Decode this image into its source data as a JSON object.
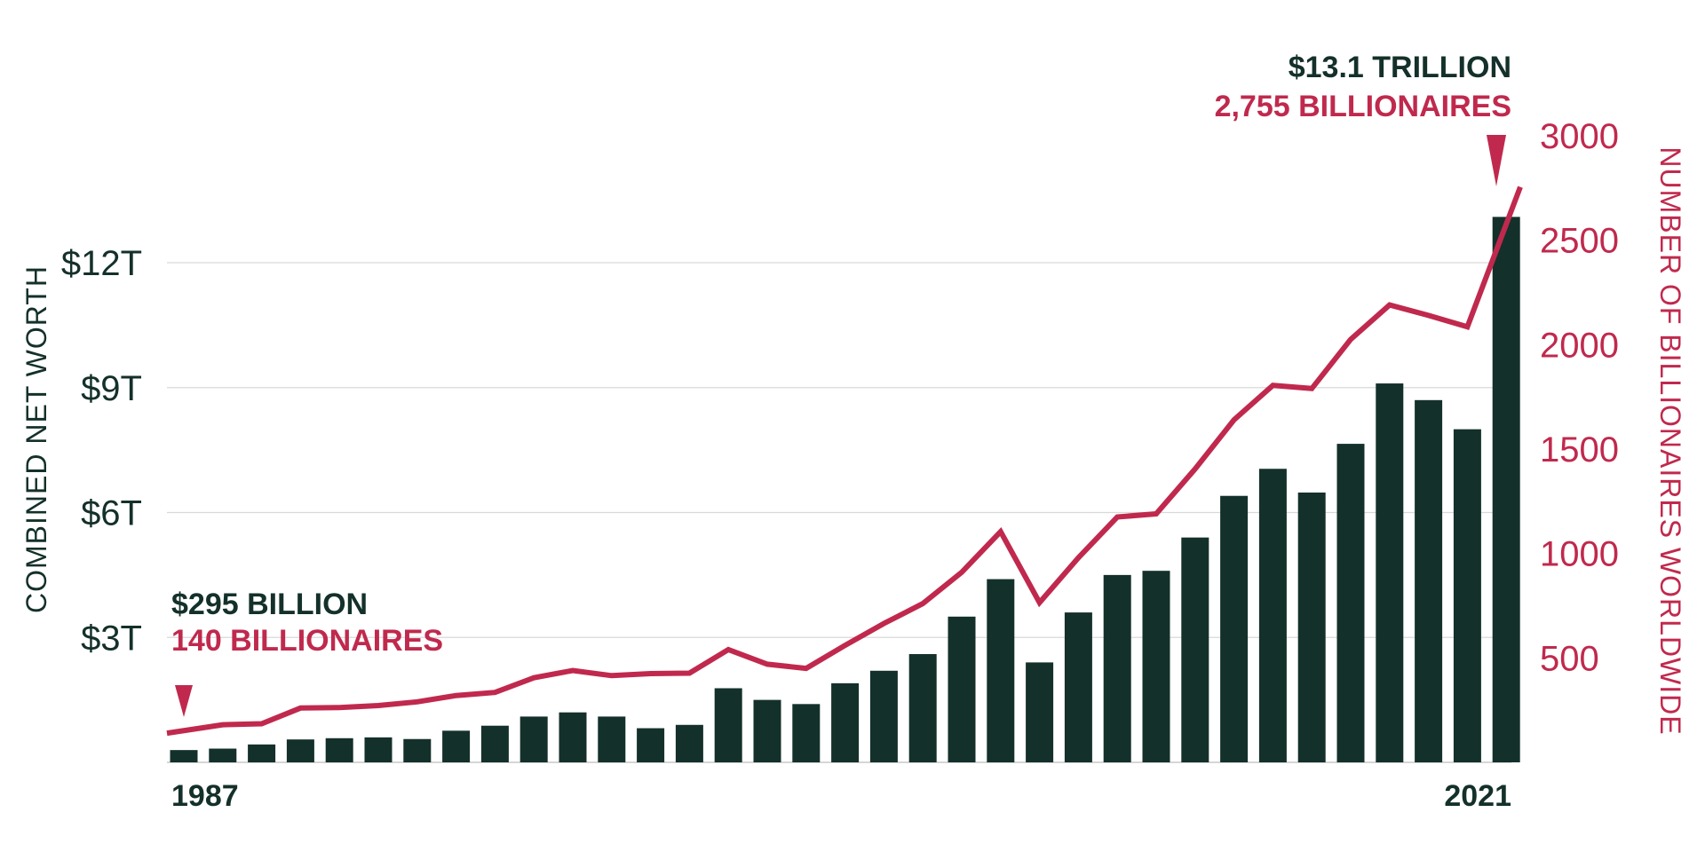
{
  "chart_data": {
    "type": "bar",
    "x": [
      1987,
      1988,
      1989,
      1990,
      1991,
      1992,
      1993,
      1994,
      1995,
      1996,
      1997,
      1998,
      1999,
      2000,
      2001,
      2002,
      2003,
      2004,
      2005,
      2006,
      2007,
      2008,
      2009,
      2010,
      2011,
      2012,
      2013,
      2014,
      2015,
      2016,
      2017,
      2018,
      2019,
      2020,
      2021
    ],
    "series": [
      {
        "axis": "left",
        "kind": "bar",
        "color": "#14302a",
        "values": [
          0.295,
          0.33,
          0.43,
          0.55,
          0.58,
          0.6,
          0.56,
          0.76,
          0.88,
          1.1,
          1.2,
          1.1,
          0.82,
          0.9,
          1.78,
          1.5,
          1.4,
          1.9,
          2.2,
          2.6,
          3.5,
          4.4,
          2.4,
          3.6,
          4.5,
          4.6,
          5.4,
          6.4,
          7.05,
          6.48,
          7.65,
          9.1,
          8.7,
          8.0,
          13.1
        ]
      },
      {
        "axis": "right",
        "kind": "line",
        "color": "#c0294d",
        "values": [
          140,
          180,
          185,
          260,
          262,
          272,
          290,
          320,
          335,
          405,
          440,
          415,
          425,
          427,
          540,
          470,
          450,
          560,
          665,
          760,
          910,
          1105,
          765,
          980,
          1175,
          1190,
          1405,
          1640,
          1805,
          1790,
          2025,
          2190,
          2140,
          2085,
          2755
        ]
      }
    ],
    "y_left": {
      "label": "COMBINED NET WORTH",
      "ylim": [
        0,
        15
      ],
      "ticks": [
        3,
        6,
        9,
        12
      ],
      "tick_labels": [
        "$3T",
        "$6T",
        "$9T",
        "$12T"
      ]
    },
    "y_right": {
      "label": "NUMBER OF BILLIONAIRES WORLDWIDE",
      "ylim": [
        0,
        3000
      ],
      "ticks": [
        500,
        1000,
        1500,
        2000,
        2500,
        3000
      ],
      "tick_labels": [
        "500",
        "1000",
        "1500",
        "2000",
        "2500",
        "3000"
      ]
    },
    "x_tick_labels": [
      "1987",
      "2021"
    ],
    "annotations": {
      "start": {
        "line1": "$295 BILLION",
        "line2": "140 BILLIONAIRES"
      },
      "end": {
        "line1": "$13.1 TRILLION",
        "line2": "2,755 BILLIONAIRES"
      }
    },
    "grid": true
  }
}
